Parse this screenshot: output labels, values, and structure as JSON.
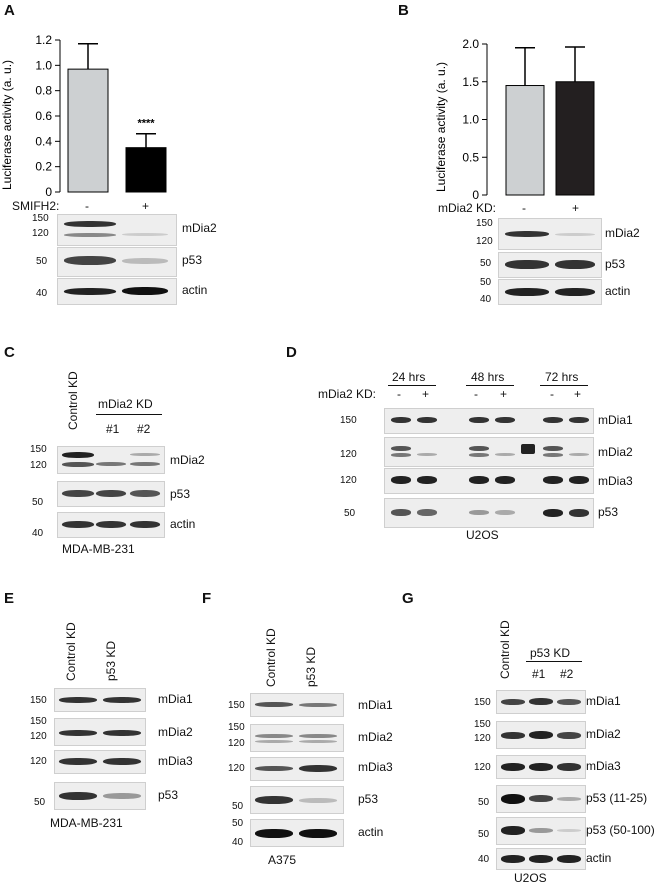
{
  "panels": {
    "A": {
      "label": "A",
      "chart_data": {
        "type": "bar",
        "categories": [
          "-",
          "+"
        ],
        "values": [
          0.97,
          0.35
        ],
        "errors": [
          0.2,
          0.11
        ],
        "ylabel": "Luciferase activity (a. u.)",
        "yticks": [
          "0",
          "0.2",
          "0.4",
          "0.6",
          "0.8",
          "1.0",
          "1.2"
        ],
        "ylim": [
          0,
          1.2
        ],
        "annotation": "****",
        "colors": [
          "#cdd0d2",
          "#000000"
        ]
      },
      "treatment": "SMIFH2:",
      "conds": [
        "-",
        "+"
      ],
      "blots": [
        "mDia2",
        "p53",
        "actin"
      ],
      "mw": {
        "m1": "150",
        "m2": "120",
        "m3": "50",
        "m4": "40"
      }
    },
    "B": {
      "label": "B",
      "chart_data": {
        "type": "bar",
        "categories": [
          "-",
          "+"
        ],
        "values": [
          1.45,
          1.5
        ],
        "errors": [
          0.5,
          0.46
        ],
        "ylabel": "Luciferase activity (a. u.)",
        "yticks": [
          "0",
          "0.5",
          "1.0",
          "1.5",
          "2.0"
        ],
        "ylim": [
          0,
          2.0
        ],
        "colors": [
          "#cdd0d2",
          "#231f20"
        ]
      },
      "treatment": "mDia2 KD:",
      "conds": [
        "-",
        "+"
      ],
      "blots": [
        "mDia2",
        "p53",
        "actin"
      ],
      "mw": {
        "m1": "150",
        "m2": "120",
        "m3": "50",
        "m4": "50",
        "m5": "40"
      }
    },
    "C": {
      "label": "C",
      "control": "Control KD",
      "group": "mDia2 KD",
      "sub1": "#1",
      "sub2": "#2",
      "blots": [
        "mDia2",
        "p53",
        "actin"
      ],
      "mw": {
        "m1": "150",
        "m2": "120",
        "m3": "50",
        "m4": "40"
      },
      "cell_line": "MDA-MB-231"
    },
    "D": {
      "label": "D",
      "times": [
        "24 hrs",
        "48 hrs",
        "72 hrs"
      ],
      "treatment": "mDia2 KD:",
      "conds": [
        "-",
        "+"
      ],
      "blots": [
        "mDia1",
        "mDia2",
        "mDia3",
        "p53"
      ],
      "mw": {
        "m1": "150",
        "m2": "120",
        "m3": "120",
        "m4": "50"
      },
      "cell_line": "U2OS"
    },
    "E": {
      "label": "E",
      "lanes": [
        "Control KD",
        "p53 KD"
      ],
      "blots": [
        "mDia1",
        "mDia2",
        "mDia3",
        "p53"
      ],
      "mw": {
        "m1": "150",
        "m2": "150",
        "m3": "120",
        "m4": "120",
        "m5": "50"
      },
      "cell_line": "MDA-MB-231"
    },
    "F": {
      "label": "F",
      "lanes": [
        "Control KD",
        "p53 KD"
      ],
      "blots": [
        "mDia1",
        "mDia2",
        "mDia3",
        "p53",
        "actin"
      ],
      "mw": {
        "m1": "150",
        "m2": "150",
        "m3": "120",
        "m4": "120",
        "m5": "50",
        "m6": "50",
        "m7": "40"
      },
      "cell_line": "A375"
    },
    "G": {
      "label": "G",
      "control": "Control KD",
      "group": "p53 KD",
      "sub1": "#1",
      "sub2": "#2",
      "blots": [
        "mDia1",
        "mDia2",
        "mDia3",
        "p53 (11-25)",
        "p53 (50-100)",
        "actin"
      ],
      "mw": {
        "m1": "150",
        "m2": "150",
        "m3": "120",
        "m4": "120",
        "m5": "50",
        "m6": "50",
        "m7": "40"
      },
      "cell_line": "U2OS"
    }
  }
}
